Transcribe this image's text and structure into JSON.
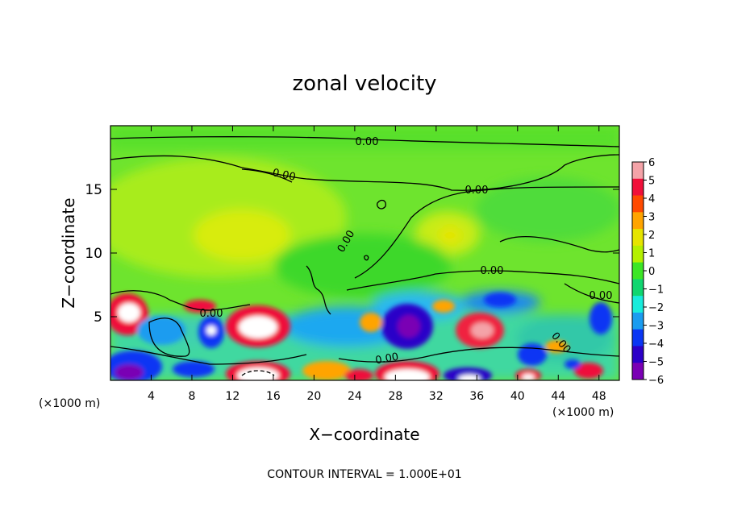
{
  "chart_data": {
    "type": "heatmap",
    "title": "zonal velocity",
    "xlabel": "X−coordinate",
    "ylabel": "Z−coordinate",
    "x_units_label": "(×1000 m)",
    "x_units_label_right": "(×1000 m)",
    "footer": "CONTOUR INTERVAL = 1.000E+01",
    "xlim": [
      0,
      50
    ],
    "ylim": [
      0,
      20
    ],
    "x_ticks": [
      4,
      8,
      12,
      16,
      20,
      24,
      28,
      32,
      36,
      40,
      44,
      48
    ],
    "x_tick_labels": [
      "4",
      "8",
      "12",
      "16",
      "20",
      "24",
      "28",
      "32",
      "36",
      "40",
      "44",
      "48"
    ],
    "y_ticks": [
      5,
      10,
      15
    ],
    "y_tick_labels": [
      "5",
      "10",
      "15"
    ],
    "colorbar": {
      "min": -6,
      "max": 6,
      "tick_labels": [
        "6",
        "5",
        "4",
        "3",
        "2",
        "1",
        "0",
        "−1",
        "−2",
        "−3",
        "−4",
        "−5",
        "−6"
      ],
      "colors": [
        "#f4a3a8",
        "#f0103a",
        "#ff4a00",
        "#ffa400",
        "#e6e400",
        "#b4f000",
        "#3ce626",
        "#10d670",
        "#18ecdc",
        "#1a9cf0",
        "#0a36f4",
        "#2c00c8",
        "#7a00b4"
      ]
    },
    "contour_labels": [
      "0.00",
      "0.00",
      "0.00",
      "0.00",
      "0.00",
      "0.00",
      "0.00",
      "0.00",
      "0.00"
    ],
    "features": [
      {
        "x": 14.5,
        "z": 11.2,
        "value": 1.6
      },
      {
        "x": 33.5,
        "z": 11.3,
        "value": 1.8
      },
      {
        "x": 1.5,
        "z": 5.3,
        "value": 6
      },
      {
        "x": 14.5,
        "z": 4.2,
        "value": 6
      },
      {
        "x": 29.5,
        "z": 4.5,
        "value": -6
      },
      {
        "x": 35.5,
        "z": 4.1,
        "value": 4.5
      },
      {
        "x": 10.2,
        "z": 4.1,
        "value": -4
      },
      {
        "x": 38.5,
        "z": 6.0,
        "value": -3
      },
      {
        "x": 2.0,
        "z": 0.6,
        "value": -6
      },
      {
        "x": 15.0,
        "z": 0.6,
        "value": 6
      },
      {
        "x": 29.0,
        "z": 0.7,
        "value": 6
      },
      {
        "x": 36.5,
        "z": 0.6,
        "value": 6
      },
      {
        "x": 42.0,
        "z": 0.5,
        "value": 5
      },
      {
        "x": 45.5,
        "z": 3.6,
        "value": -3
      }
    ]
  }
}
